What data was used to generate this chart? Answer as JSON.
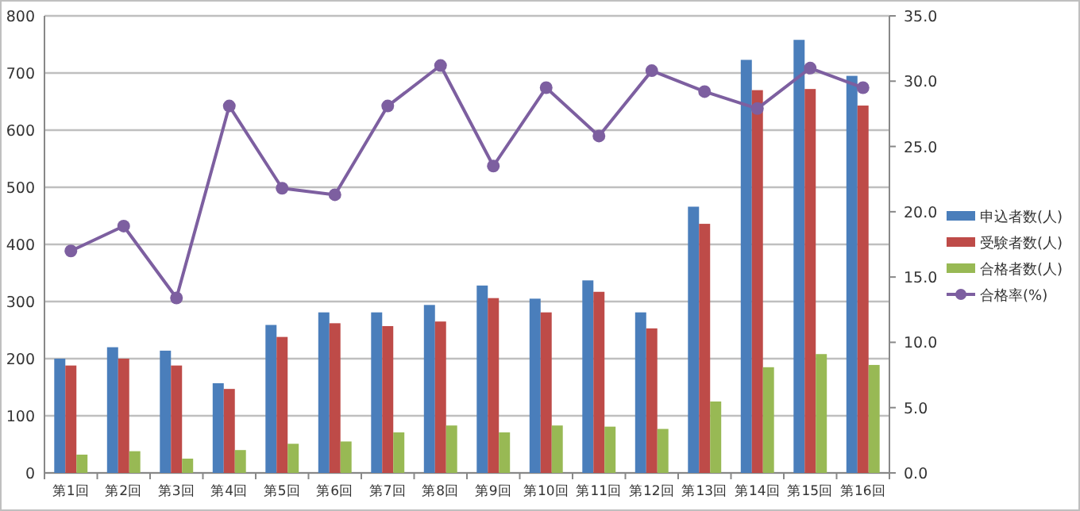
{
  "chart_data": {
    "type": "bar",
    "categories": [
      "第1回",
      "第2回",
      "第3回",
      "第4回",
      "第5回",
      "第6回",
      "第7回",
      "第8回",
      "第9回",
      "第10回",
      "第11回",
      "第12回",
      "第13回",
      "第14回",
      "第15回",
      "第16回"
    ],
    "series": [
      {
        "name": "申込者数(人)",
        "color": "#4a7ebb",
        "values": [
          200,
          220,
          214,
          157,
          259,
          281,
          281,
          294,
          328,
          305,
          337,
          281,
          466,
          723,
          758,
          695
        ]
      },
      {
        "name": "受験者数(人)",
        "color": "#be4b48",
        "values": [
          188,
          200,
          188,
          147,
          238,
          262,
          257,
          265,
          306,
          281,
          317,
          253,
          436,
          670,
          672,
          643
        ]
      },
      {
        "name": "合格者数(人)",
        "color": "#98b954",
        "values": [
          32,
          38,
          25,
          40,
          51,
          55,
          71,
          83,
          71,
          83,
          81,
          77,
          125,
          185,
          208,
          189
        ]
      },
      {
        "name": "合格率(%)",
        "type": "line",
        "axis": "y2",
        "color": "#7d5fa0",
        "marker": "circle",
        "values": [
          17.0,
          18.9,
          13.4,
          28.1,
          21.8,
          21.3,
          28.1,
          31.2,
          23.5,
          29.5,
          25.8,
          30.8,
          29.2,
          27.9,
          31.0,
          29.5
        ]
      }
    ],
    "ylim": [
      0,
      800
    ],
    "yticks": [
      0,
      100,
      200,
      300,
      400,
      500,
      600,
      700,
      800
    ],
    "y2lim": [
      0,
      35
    ],
    "y2ticks": [
      {
        "value": 0,
        "label": "0.0"
      },
      {
        "value": 5,
        "label": "5.0"
      },
      {
        "value": 10,
        "label": "10.0"
      },
      {
        "value": 15,
        "label": "15.0"
      },
      {
        "value": 20,
        "label": "20.0"
      },
      {
        "value": 25,
        "label": "25.0"
      },
      {
        "value": 30,
        "label": "30.0"
      },
      {
        "value": 35,
        "label": "35.0"
      }
    ],
    "grid": "y",
    "legend": "right"
  }
}
